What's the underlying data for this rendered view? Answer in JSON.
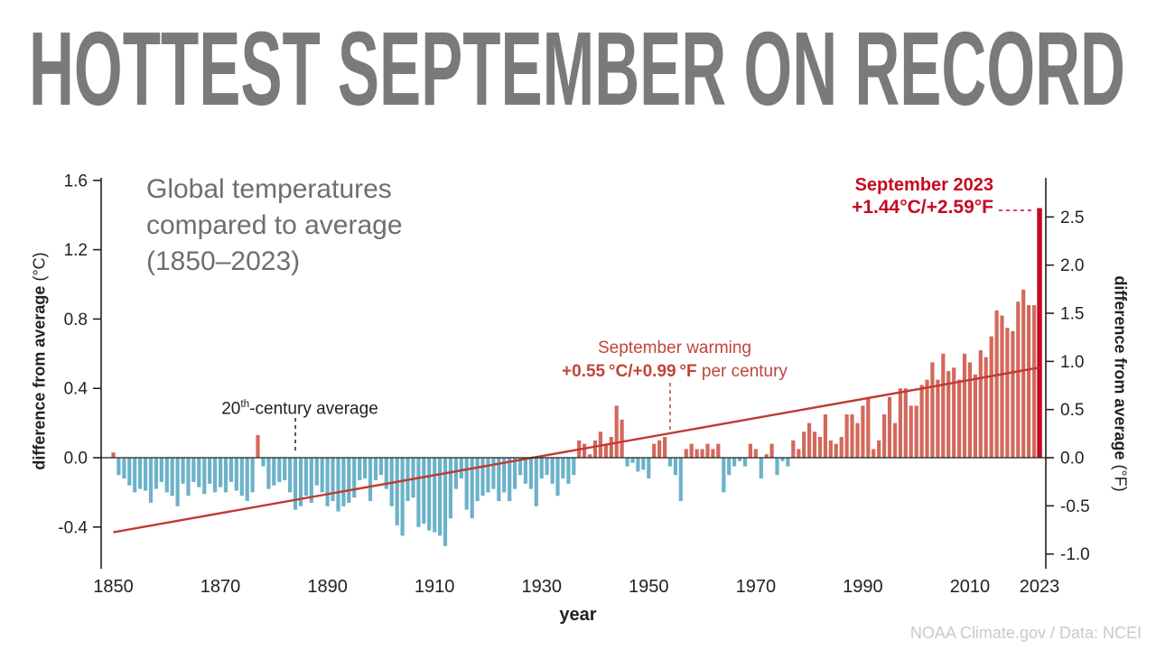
{
  "title": "HOTTEST SEPTEMBER ON RECORD",
  "credit": "NOAA Climate.gov / Data: NCEI",
  "theme": {
    "title_gray": "#7a7a7a",
    "subtitle_gray": "#6d6e71",
    "text_dark": "#231f20",
    "credit_gray": "#c9c9c9",
    "warming_red": "#c0453b",
    "record_red": "#c40a23",
    "background": "#ffffff"
  },
  "chart_data": {
    "type": "bar",
    "title": "HOTTEST SEPTEMBER ON RECORD",
    "subtitle": "Global temperatures\ncompared to average\n(1850–2023)",
    "xlabel": "year",
    "axes": {
      "left_main": "difference from average",
      "left_unit": " (°C)",
      "right_main": "difference from average",
      "right_unit": " (°F)",
      "x_label": "year"
    },
    "start_year": 1850,
    "end_year": 2023,
    "ylim_c": [
      -0.65,
      1.6
    ],
    "yticks_c": [
      1.6,
      1.2,
      0.8,
      0.4,
      0.0,
      -0.4
    ],
    "yticks_f": [
      2.5,
      2.0,
      1.5,
      1.0,
      0.5,
      0.0,
      -0.5,
      -1.0
    ],
    "xticks": [
      1850,
      1870,
      1890,
      1910,
      1930,
      1950,
      1970,
      1990,
      2010,
      2023
    ],
    "grid": false,
    "legend": null,
    "values": [
      0.03,
      -0.1,
      -0.12,
      -0.16,
      -0.2,
      -0.18,
      -0.19,
      -0.26,
      -0.18,
      -0.14,
      -0.2,
      -0.22,
      -0.28,
      -0.15,
      -0.22,
      -0.14,
      -0.17,
      -0.21,
      -0.15,
      -0.2,
      -0.17,
      -0.2,
      -0.14,
      -0.19,
      -0.22,
      -0.25,
      -0.2,
      0.13,
      -0.05,
      -0.18,
      -0.16,
      -0.14,
      -0.13,
      -0.2,
      -0.3,
      -0.28,
      -0.22,
      -0.26,
      -0.16,
      -0.2,
      -0.28,
      -0.25,
      -0.31,
      -0.28,
      -0.26,
      -0.23,
      -0.13,
      -0.12,
      -0.25,
      -0.13,
      -0.1,
      -0.18,
      -0.28,
      -0.39,
      -0.45,
      -0.25,
      -0.23,
      -0.4,
      -0.38,
      -0.42,
      -0.43,
      -0.45,
      -0.51,
      -0.35,
      -0.18,
      -0.12,
      -0.3,
      -0.35,
      -0.25,
      -0.22,
      -0.2,
      -0.18,
      -0.25,
      -0.2,
      -0.25,
      -0.18,
      -0.1,
      -0.15,
      -0.18,
      -0.28,
      -0.12,
      -0.1,
      -0.15,
      -0.22,
      -0.12,
      -0.15,
      -0.1,
      0.1,
      0.08,
      0.02,
      0.1,
      0.15,
      0.08,
      0.12,
      0.3,
      0.22,
      -0.05,
      -0.03,
      -0.08,
      -0.07,
      -0.12,
      0.08,
      0.1,
      0.12,
      -0.05,
      -0.1,
      -0.25,
      0.05,
      0.08,
      0.05,
      0.05,
      0.08,
      0.05,
      0.08,
      -0.2,
      -0.1,
      -0.05,
      -0.02,
      -0.05,
      0.08,
      0.05,
      -0.12,
      0.02,
      0.08,
      -0.1,
      -0.02,
      -0.05,
      0.1,
      0.05,
      0.15,
      0.2,
      0.15,
      0.12,
      0.25,
      0.1,
      0.08,
      0.12,
      0.25,
      0.25,
      0.2,
      0.3,
      0.35,
      0.05,
      0.1,
      0.25,
      0.35,
      0.2,
      0.4,
      0.4,
      0.3,
      0.3,
      0.42,
      0.45,
      0.55,
      0.45,
      0.6,
      0.5,
      0.52,
      0.45,
      0.6,
      0.55,
      0.48,
      0.62,
      0.58,
      0.7,
      0.85,
      0.82,
      0.75,
      0.73,
      0.9,
      0.97,
      0.88,
      0.88,
      1.44
    ],
    "trend": {
      "start_value": -0.43,
      "end_value": 0.52,
      "per_century_c": 0.55,
      "per_century_f": 0.99
    },
    "record": {
      "year": 2023,
      "value_c": 1.44,
      "value_f": 2.59
    },
    "colors": {
      "positive": "#d3685c",
      "negative": "#6cb2c9",
      "record": "#c40a23",
      "trend": "#bf3a32"
    },
    "annotations": {
      "century_avg": {
        "prefix": "20",
        "sup": "th",
        "rest": "-century average",
        "pointer_year": 1884
      },
      "warming": {
        "line1": "September warming",
        "value": "+0.55 °C/+0.99 °F",
        "suffix": " per century",
        "pointer_year": 1954
      },
      "record_label": {
        "line1": "September 2023",
        "line2": "+1.44°C/+2.59°F"
      }
    }
  }
}
